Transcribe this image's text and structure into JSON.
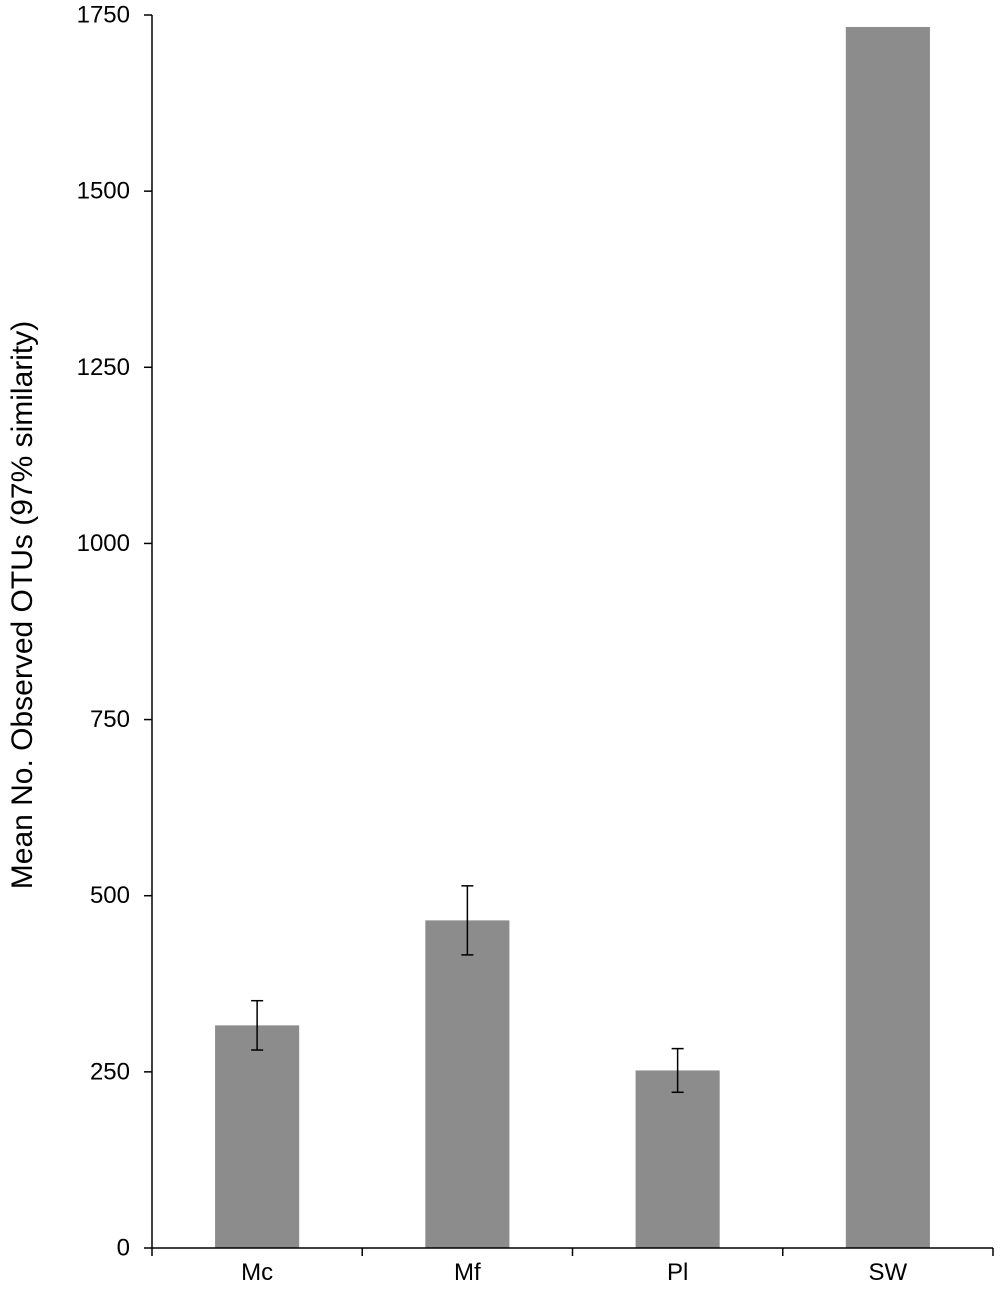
{
  "chart_data": {
    "type": "bar",
    "title": "",
    "xlabel": "",
    "ylabel": "Mean No. Observed OTUs (97% similarity)",
    "categories": [
      "Mc",
      "Mf",
      "Pl",
      "SW"
    ],
    "values": [
      316,
      465,
      252,
      1733
    ],
    "errors": [
      35,
      49,
      31,
      null
    ],
    "ylim": [
      0,
      1750
    ],
    "yticks": [
      0,
      250,
      500,
      750,
      1000,
      1250,
      1500,
      1750
    ],
    "ytick_labels": [
      "0",
      "250",
      "500",
      "750",
      "1000",
      "1250",
      "1500",
      "1750"
    ],
    "grid": false,
    "legend": "none",
    "bar_color": "#8c8c8c",
    "axis_color": "#000000"
  }
}
